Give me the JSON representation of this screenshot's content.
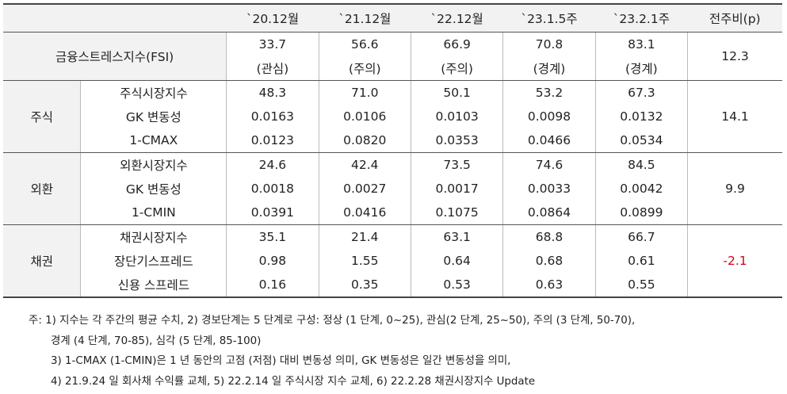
{
  "header": {
    "empty": "",
    "cols": [
      "`20.12월",
      "`21.12월",
      "`22.12월",
      "`23.1.5주",
      "`23.2.1주"
    ],
    "change": "전주비(p)"
  },
  "fsi": {
    "label": "금융스트레스지수(FSI)",
    "values": [
      "33.7",
      "56.6",
      "66.9",
      "70.8",
      "83.1"
    ],
    "levels": [
      "(관심)",
      "(주의)",
      "(주의)",
      "(경계)",
      "(경계)"
    ],
    "change": "12.3"
  },
  "stock": {
    "label": "주식",
    "change": "14.1",
    "rows": [
      {
        "label": "주식시장지수",
        "values": [
          "48.3",
          "71.0",
          "50.1",
          "53.2",
          "67.3"
        ]
      },
      {
        "label": "GK 변동성",
        "values": [
          "0.0163",
          "0.0106",
          "0.0103",
          "0.0098",
          "0.0132"
        ]
      },
      {
        "label": "1-CMAX",
        "values": [
          "0.0123",
          "0.0820",
          "0.0353",
          "0.0466",
          "0.0534"
        ]
      }
    ]
  },
  "fx": {
    "label": "외환",
    "change": "9.9",
    "rows": [
      {
        "label": "외환시장지수",
        "values": [
          "24.6",
          "42.4",
          "73.5",
          "74.6",
          "84.5"
        ]
      },
      {
        "label": "GK 변동성",
        "values": [
          "0.0018",
          "0.0027",
          "0.0017",
          "0.0033",
          "0.0042"
        ]
      },
      {
        "label": "1-CMIN",
        "values": [
          "0.0391",
          "0.0416",
          "0.1075",
          "0.0864",
          "0.0899"
        ]
      }
    ]
  },
  "bond": {
    "label": "채권",
    "change": "-2.1",
    "change_color": "#d0021b",
    "rows": [
      {
        "label": "채권시장지수",
        "values": [
          "35.1",
          "21.4",
          "63.1",
          "68.8",
          "66.7"
        ]
      },
      {
        "label": "장단기스프레드",
        "values": [
          "0.98",
          "1.55",
          "0.64",
          "0.68",
          "0.61"
        ]
      },
      {
        "label": "신용 스프레드",
        "values": [
          "0.16",
          "0.35",
          "0.53",
          "0.63",
          "0.55"
        ]
      }
    ]
  },
  "notes": [
    "주: 1) 지수는 각 주간의 평균 수치, 2) 경보단계는 5 단계로 구성: 정상 (1 단계, 0~25), 관심(2 단계, 25~50), 주의 (3 단계, 50-70),",
    "경계 (4 단계, 70-85), 심각 (5 단계, 85-100)",
    "3) 1-CMAX (1-CMIN)은 1 년 동안의 고점 (저점) 대비 변동성 의미, GK 변동성은 일간 변동성을 의미,",
    "4) 21.9.24 일 회사채 수익률 교체, 5) 22.2.14 일 주식시장 지수 교체, 6) 22.2.28 채권시장지수 Update"
  ]
}
